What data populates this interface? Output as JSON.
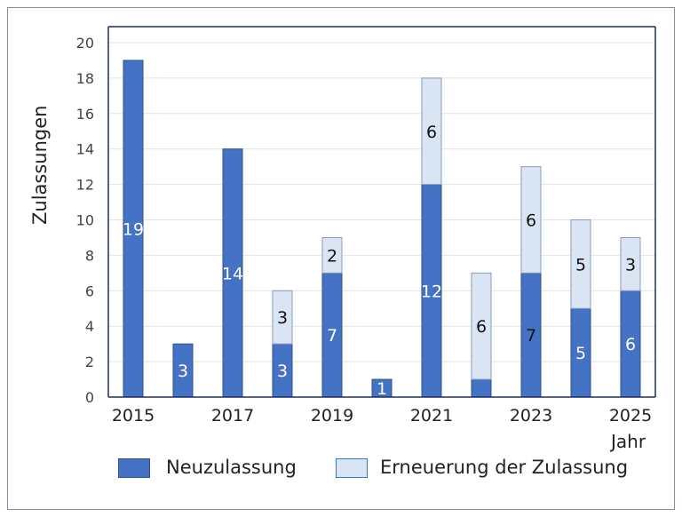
{
  "chart_data": {
    "type": "bar",
    "stacked": true,
    "categories": [
      "2015",
      "2016",
      "2017",
      "2018",
      "2019",
      "2020",
      "2021",
      "2022",
      "2023",
      "2024",
      "2025"
    ],
    "tick_labels": [
      "2015",
      "2017",
      "2019",
      "2021",
      "2023",
      "2025"
    ],
    "series": [
      {
        "name": "Neuzulassung",
        "color": "#4472c4",
        "values": [
          19,
          3,
          14,
          3,
          7,
          1,
          12,
          1,
          7,
          5,
          6
        ],
        "labels": [
          "19",
          "3",
          "14",
          "3",
          "7",
          "1",
          "12",
          "",
          "7",
          "5",
          "6"
        ],
        "label_colors": [
          "#fff",
          "#fff",
          "#fff",
          "#fff",
          "#fff",
          "#fff",
          "#fff",
          "#fff",
          "#111",
          "#fff",
          "#fff"
        ]
      },
      {
        "name": "Erneuerung der Zulassung",
        "color": "#dae5f3",
        "values": [
          0,
          0,
          0,
          3,
          2,
          0,
          6,
          6,
          6,
          5,
          3
        ],
        "labels": [
          "",
          "",
          "",
          "3",
          "2",
          "",
          "6",
          "6",
          "6",
          "5",
          "3"
        ],
        "label_colors": [
          "#111",
          "#111",
          "#111",
          "#111",
          "#111",
          "#111",
          "#111",
          "#111",
          "#111",
          "#111",
          "#111"
        ]
      }
    ],
    "xlabel": "Jahr",
    "ylabel": "Zulassungen",
    "ylim": [
      0,
      20
    ],
    "yticks": [
      0,
      2,
      4,
      6,
      8,
      10,
      12,
      14,
      16,
      18,
      20
    ],
    "grid": true,
    "legend": "bottom"
  }
}
